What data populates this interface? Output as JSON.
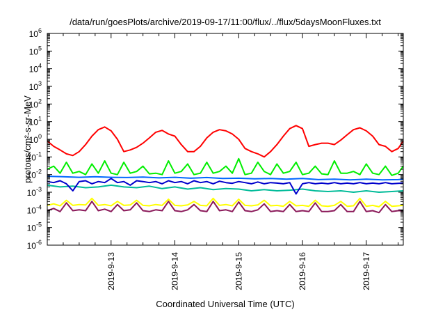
{
  "chart_data": {
    "type": "line",
    "title": "/data/run/goesPlots/archive/2019-09-17/11:00/flux/../flux/5daysMoonFluxes.txt",
    "xlabel": "Coordinated Universal Time (UTC)",
    "ylabel": "protons/cm²-s-sr-MeV",
    "yscale": "log",
    "ylim": [
      1e-06,
      1000000.0
    ],
    "xlim": [
      0,
      5.58
    ],
    "x_unit": "days from 2019-09-12 00:00 UTC",
    "x_ticks": [
      {
        "x": 1,
        "label": "2019-9-13"
      },
      {
        "x": 2,
        "label": "2019-9-14"
      },
      {
        "x": 3,
        "label": "2019-9-15"
      },
      {
        "x": 4,
        "label": "2019-9-16"
      },
      {
        "x": 5,
        "label": "2019-9-17"
      }
    ],
    "y_ticks": [
      {
        "base": "10",
        "exp": "-6"
      },
      {
        "base": "10",
        "exp": "-5"
      },
      {
        "base": "10",
        "exp": "-4"
      },
      {
        "base": "10",
        "exp": "-3"
      },
      {
        "base": "10",
        "exp": "-2"
      },
      {
        "base": "10",
        "exp": "-1"
      },
      {
        "base": "10",
        "exp": "0"
      },
      {
        "base": "10",
        "exp": "1"
      },
      {
        "base": "10",
        "exp": "2"
      },
      {
        "base": "10",
        "exp": "3"
      },
      {
        "base": "10",
        "exp": "4"
      },
      {
        "base": "10",
        "exp": "5"
      },
      {
        "base": "10",
        "exp": "6"
      }
    ],
    "grid": false,
    "legend": "none",
    "series": [
      {
        "color": "#ff0000",
        "x": [
          0,
          0.1,
          0.2,
          0.3,
          0.4,
          0.5,
          0.6,
          0.7,
          0.8,
          0.9,
          1.0,
          1.1,
          1.2,
          1.3,
          1.4,
          1.5,
          1.6,
          1.7,
          1.8,
          1.9,
          2.0,
          2.1,
          2.2,
          2.3,
          2.4,
          2.5,
          2.6,
          2.7,
          2.8,
          2.9,
          3.0,
          3.1,
          3.2,
          3.3,
          3.4,
          3.5,
          3.6,
          3.7,
          3.8,
          3.9,
          4.0,
          4.1,
          4.2,
          4.3,
          4.4,
          4.5,
          4.6,
          4.7,
          4.8,
          4.9,
          5.0,
          5.1,
          5.2,
          5.3,
          5.4,
          5.5,
          5.58
        ],
        "values": [
          0.8,
          0.4,
          0.25,
          0.15,
          0.12,
          0.2,
          0.5,
          1.5,
          3.5,
          5.0,
          3.0,
          1.0,
          0.2,
          0.25,
          0.35,
          0.6,
          1.2,
          2.5,
          3.2,
          2.0,
          1.5,
          0.5,
          0.2,
          0.2,
          0.4,
          1.2,
          2.5,
          3.5,
          3.0,
          2.0,
          1.0,
          0.3,
          0.2,
          0.15,
          0.1,
          0.2,
          0.5,
          1.5,
          4.0,
          6.0,
          4.0,
          0.4,
          0.5,
          0.6,
          0.6,
          0.5,
          0.9,
          1.8,
          3.5,
          4.5,
          3.0,
          1.5,
          0.5,
          0.4,
          0.2,
          0.3,
          0.8
        ]
      },
      {
        "color": "#00ee00",
        "x": [
          0,
          0.1,
          0.2,
          0.3,
          0.4,
          0.5,
          0.6,
          0.7,
          0.8,
          0.9,
          1.0,
          1.1,
          1.2,
          1.3,
          1.4,
          1.5,
          1.6,
          1.7,
          1.8,
          1.9,
          2.0,
          2.1,
          2.2,
          2.3,
          2.4,
          2.5,
          2.6,
          2.7,
          2.8,
          2.9,
          3.0,
          3.1,
          3.2,
          3.3,
          3.4,
          3.5,
          3.6,
          3.7,
          3.8,
          3.9,
          4.0,
          4.1,
          4.2,
          4.3,
          4.4,
          4.5,
          4.6,
          4.7,
          4.8,
          4.9,
          5.0,
          5.1,
          5.2,
          5.3,
          5.4,
          5.5,
          5.58
        ],
        "values": [
          0.02,
          0.03,
          0.012,
          0.05,
          0.012,
          0.015,
          0.01,
          0.04,
          0.012,
          0.06,
          0.012,
          0.01,
          0.05,
          0.012,
          0.015,
          0.03,
          0.011,
          0.012,
          0.01,
          0.06,
          0.012,
          0.015,
          0.04,
          0.01,
          0.012,
          0.05,
          0.012,
          0.015,
          0.03,
          0.012,
          0.08,
          0.01,
          0.012,
          0.05,
          0.015,
          0.01,
          0.04,
          0.012,
          0.015,
          0.05,
          0.01,
          0.012,
          0.03,
          0.011,
          0.01,
          0.06,
          0.012,
          0.012,
          0.015,
          0.01,
          0.04,
          0.012,
          0.01,
          0.03,
          0.009,
          0.012,
          0.03
        ]
      },
      {
        "color": "#00bb99",
        "x": [
          0,
          0.2,
          0.4,
          0.6,
          0.8,
          1.0,
          1.2,
          1.4,
          1.6,
          1.8,
          2.0,
          2.2,
          2.4,
          2.6,
          2.8,
          3.0,
          3.2,
          3.4,
          3.6,
          3.8,
          4.0,
          4.2,
          4.4,
          4.6,
          4.8,
          5.0,
          5.2,
          5.4,
          5.58
        ],
        "values": [
          0.0025,
          0.002,
          0.0022,
          0.0018,
          0.002,
          0.0025,
          0.002,
          0.0018,
          0.0022,
          0.0016,
          0.002,
          0.0015,
          0.0018,
          0.0014,
          0.0016,
          0.0015,
          0.0012,
          0.0014,
          0.0012,
          0.0013,
          0.0015,
          0.0012,
          0.0011,
          0.0012,
          0.001,
          0.0012,
          0.001,
          0.0011,
          0.0012
        ]
      },
      {
        "color": "#0066ff",
        "x": [
          0,
          0.25,
          0.5,
          0.75,
          1.0,
          1.25,
          1.5,
          1.75,
          2.0,
          2.25,
          2.5,
          2.75,
          3.0,
          3.25,
          3.5,
          3.75,
          4.0,
          4.25,
          4.5,
          4.75,
          5.0,
          5.25,
          5.5,
          5.58
        ],
        "values": [
          0.008,
          0.0075,
          0.007,
          0.0075,
          0.007,
          0.0068,
          0.0072,
          0.0065,
          0.007,
          0.0062,
          0.0068,
          0.006,
          0.0062,
          0.0058,
          0.006,
          0.0055,
          0.006,
          0.0052,
          0.0055,
          0.005,
          0.0055,
          0.005,
          0.0052,
          0.0055
        ]
      },
      {
        "color": "#0000cc",
        "x": [
          0,
          0.1,
          0.2,
          0.3,
          0.4,
          0.5,
          0.6,
          0.7,
          0.8,
          0.9,
          1.0,
          1.1,
          1.2,
          1.3,
          1.4,
          1.5,
          1.6,
          1.7,
          1.8,
          1.9,
          2.0,
          2.1,
          2.2,
          2.3,
          2.4,
          2.5,
          2.6,
          2.7,
          2.8,
          2.9,
          3.0,
          3.1,
          3.2,
          3.3,
          3.4,
          3.5,
          3.6,
          3.7,
          3.8,
          3.9,
          4.0,
          4.1,
          4.2,
          4.3,
          4.4,
          4.5,
          4.6,
          4.7,
          4.8,
          4.9,
          5.0,
          5.1,
          5.2,
          5.3,
          5.4,
          5.5,
          5.58
        ],
        "values": [
          0.004,
          0.0035,
          0.0045,
          0.003,
          0.0012,
          0.004,
          0.0045,
          0.003,
          0.004,
          0.0035,
          0.006,
          0.0035,
          0.004,
          0.0025,
          0.0045,
          0.004,
          0.0035,
          0.004,
          0.003,
          0.0045,
          0.0035,
          0.004,
          0.003,
          0.0045,
          0.0035,
          0.004,
          0.003,
          0.0042,
          0.0035,
          0.0032,
          0.004,
          0.0035,
          0.003,
          0.0038,
          0.003,
          0.0035,
          0.0033,
          0.003,
          0.0035,
          0.0008,
          0.003,
          0.0035,
          0.003,
          0.0033,
          0.003,
          0.0035,
          0.003,
          0.0033,
          0.003,
          0.0035,
          0.003,
          0.0033,
          0.003,
          0.0035,
          0.003,
          0.0032,
          0.0033
        ]
      },
      {
        "color": "#ffff00",
        "x": [
          0,
          0.1,
          0.2,
          0.3,
          0.4,
          0.5,
          0.6,
          0.7,
          0.8,
          0.9,
          1.0,
          1.1,
          1.2,
          1.3,
          1.4,
          1.5,
          1.6,
          1.7,
          1.8,
          1.9,
          2.0,
          2.1,
          2.2,
          2.3,
          2.4,
          2.5,
          2.6,
          2.7,
          2.8,
          2.9,
          3.0,
          3.1,
          3.2,
          3.3,
          3.4,
          3.5,
          3.6,
          3.7,
          3.8,
          3.9,
          4.0,
          4.1,
          4.2,
          4.3,
          4.4,
          4.5,
          4.6,
          4.7,
          4.8,
          4.9,
          5.0,
          5.1,
          5.2,
          5.3,
          5.4,
          5.5,
          5.58
        ],
        "values": [
          0.00018,
          0.00022,
          0.00017,
          0.00035,
          0.00018,
          0.0002,
          0.00019,
          0.00045,
          0.00018,
          0.0002,
          0.00017,
          0.0003,
          0.00018,
          0.00019,
          0.00035,
          0.00018,
          0.00017,
          0.0002,
          0.00018,
          0.0004,
          0.00018,
          0.00017,
          0.00019,
          0.0003,
          0.00018,
          0.00017,
          0.00045,
          0.00018,
          0.0002,
          0.00017,
          0.0004,
          0.00018,
          0.00017,
          0.00019,
          0.00035,
          0.00017,
          0.00018,
          0.00016,
          0.0003,
          0.00017,
          0.00018,
          0.00016,
          0.00035,
          0.00017,
          0.00016,
          0.00018,
          0.0003,
          0.00016,
          0.00017,
          0.00045,
          0.00016,
          0.00018,
          0.00015,
          0.0003,
          0.00016,
          0.00017,
          0.00018
        ]
      },
      {
        "color": "#8b1a5a",
        "x": [
          0,
          0.1,
          0.2,
          0.3,
          0.4,
          0.5,
          0.6,
          0.7,
          0.8,
          0.9,
          1.0,
          1.1,
          1.2,
          1.3,
          1.4,
          1.5,
          1.6,
          1.7,
          1.8,
          1.9,
          2.0,
          2.1,
          2.2,
          2.3,
          2.4,
          2.5,
          2.6,
          2.7,
          2.8,
          2.9,
          3.0,
          3.1,
          3.2,
          3.3,
          3.4,
          3.5,
          3.6,
          3.7,
          3.8,
          3.9,
          4.0,
          4.1,
          4.2,
          4.3,
          4.4,
          4.5,
          4.6,
          4.7,
          4.8,
          4.9,
          5.0,
          5.1,
          5.2,
          5.3,
          5.4,
          5.5,
          5.58
        ],
        "values": [
          9e-05,
          0.00012,
          8e-05,
          0.00025,
          9e-05,
          0.0001,
          9e-05,
          0.0003,
          9e-05,
          0.00011,
          8e-05,
          0.0002,
          9e-05,
          0.0001,
          0.00025,
          9e-05,
          8e-05,
          0.0001,
          9e-05,
          0.0003,
          9e-05,
          8e-05,
          0.0001,
          0.0002,
          9e-05,
          8e-05,
          0.0003,
          9e-05,
          0.0001,
          8e-05,
          0.00028,
          9e-05,
          8e-05,
          0.0001,
          0.00022,
          8e-05,
          9e-05,
          8e-05,
          0.0002,
          8e-05,
          9e-05,
          8e-05,
          0.00025,
          8e-05,
          8e-05,
          9e-05,
          0.0002,
          8e-05,
          8e-05,
          0.0003,
          8e-05,
          9e-05,
          7e-05,
          0.0002,
          8e-05,
          9e-05,
          9e-05
        ]
      }
    ]
  }
}
